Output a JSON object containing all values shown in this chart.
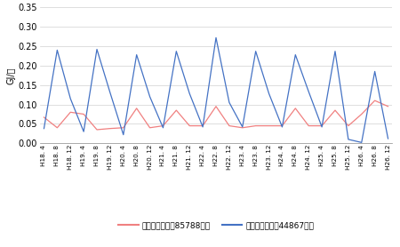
{
  "x_labels": [
    "H18. 4",
    "H18. 8",
    "H18. 12",
    "H19. 4",
    "H19. 8",
    "H19. 12",
    "H20. 4",
    "H20. 8",
    "H20. 12",
    "H21. 4",
    "H21. 8",
    "H21. 12",
    "H22. 4",
    "H22. 8",
    "H22. 12",
    "H23. 4",
    "H23. 8",
    "H23. 12",
    "H24. 4",
    "H24. 8",
    "H24. 12",
    "H25. 4",
    "H25. 8",
    "H25. 12",
    "H26. 4",
    "H26. 8",
    "H26. 12"
  ],
  "boiler": [
    0.067,
    0.04,
    0.08,
    0.075,
    0.035,
    0.038,
    0.04,
    0.09,
    0.04,
    0.045,
    0.085,
    0.045,
    0.045,
    0.095,
    0.045,
    0.04,
    0.045,
    0.045,
    0.045,
    0.09,
    0.045,
    0.045,
    0.085,
    0.045,
    0.075,
    0.11,
    0.095
  ],
  "chiller": [
    0.038,
    0.24,
    0.115,
    0.03,
    0.242,
    0.13,
    0.022,
    0.228,
    0.12,
    0.04,
    0.237,
    0.128,
    0.042,
    0.272,
    0.105,
    0.042,
    0.237,
    0.128,
    0.042,
    0.228,
    0.133,
    0.042,
    0.237,
    0.01,
    0.002,
    0.185,
    0.012
  ],
  "boiler_color": "#f08080",
  "chiller_color": "#4472c4",
  "boiler_label": "ボイラー病院（85788㎡）",
  "chiller_label": "冷温水発生機（44867㎡）",
  "ylabel": "GJ/㎡",
  "ylim": [
    0.0,
    0.35
  ],
  "yticks": [
    0.0,
    0.05,
    0.1,
    0.15,
    0.2,
    0.25,
    0.3,
    0.35
  ],
  "bg_color": "#ffffff",
  "grid_color": "#d0d0d0"
}
